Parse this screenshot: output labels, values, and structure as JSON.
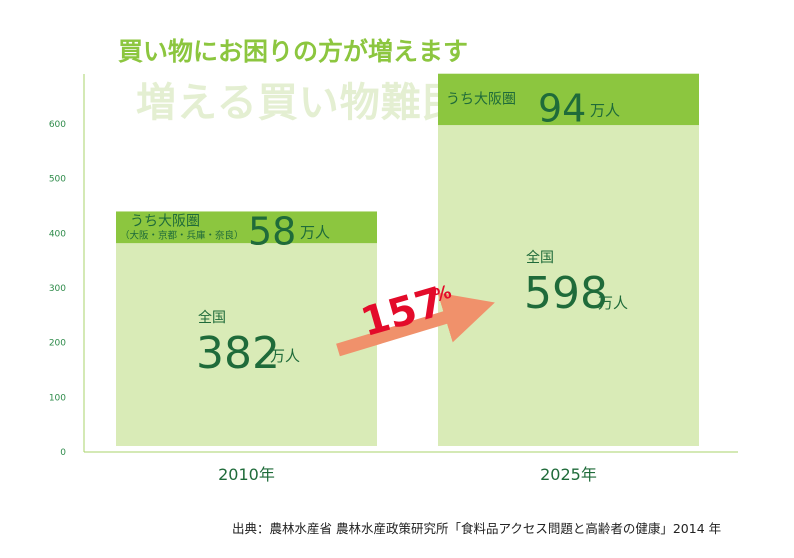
{
  "title": "買い物にお困りの方が増えます",
  "subtitle": "増える買い物難民",
  "source": "出典：農林水産省 農林水産政策研究所「食料品アクセス問題と高齢者の健康」2014 年",
  "growth_label": "157",
  "growth_unit": "%",
  "colors": {
    "total_bar": "#d9ebb7",
    "osaka_bar": "#8cc63f",
    "text_dark_green": "#1f6b3a",
    "title_green": "#8cc63f",
    "arrow": "#f0916b",
    "growth_text": "#e30b2a",
    "axis": "#a9d36b"
  },
  "chart_data": {
    "type": "bar",
    "categories": [
      "2010年",
      "2025年"
    ],
    "ylim": [
      0,
      600
    ],
    "yticks": [
      0,
      100,
      200,
      300,
      400,
      500,
      600
    ],
    "total_label": "全国",
    "osaka_label": "うち大阪圏",
    "osaka_sub_label": "（大阪・京都・兵庫・奈良）",
    "unit": "万人",
    "series": [
      {
        "name": "全国",
        "values": [
          382,
          598
        ]
      },
      {
        "name": "うち大阪圏",
        "values": [
          58,
          94
        ]
      }
    ]
  }
}
